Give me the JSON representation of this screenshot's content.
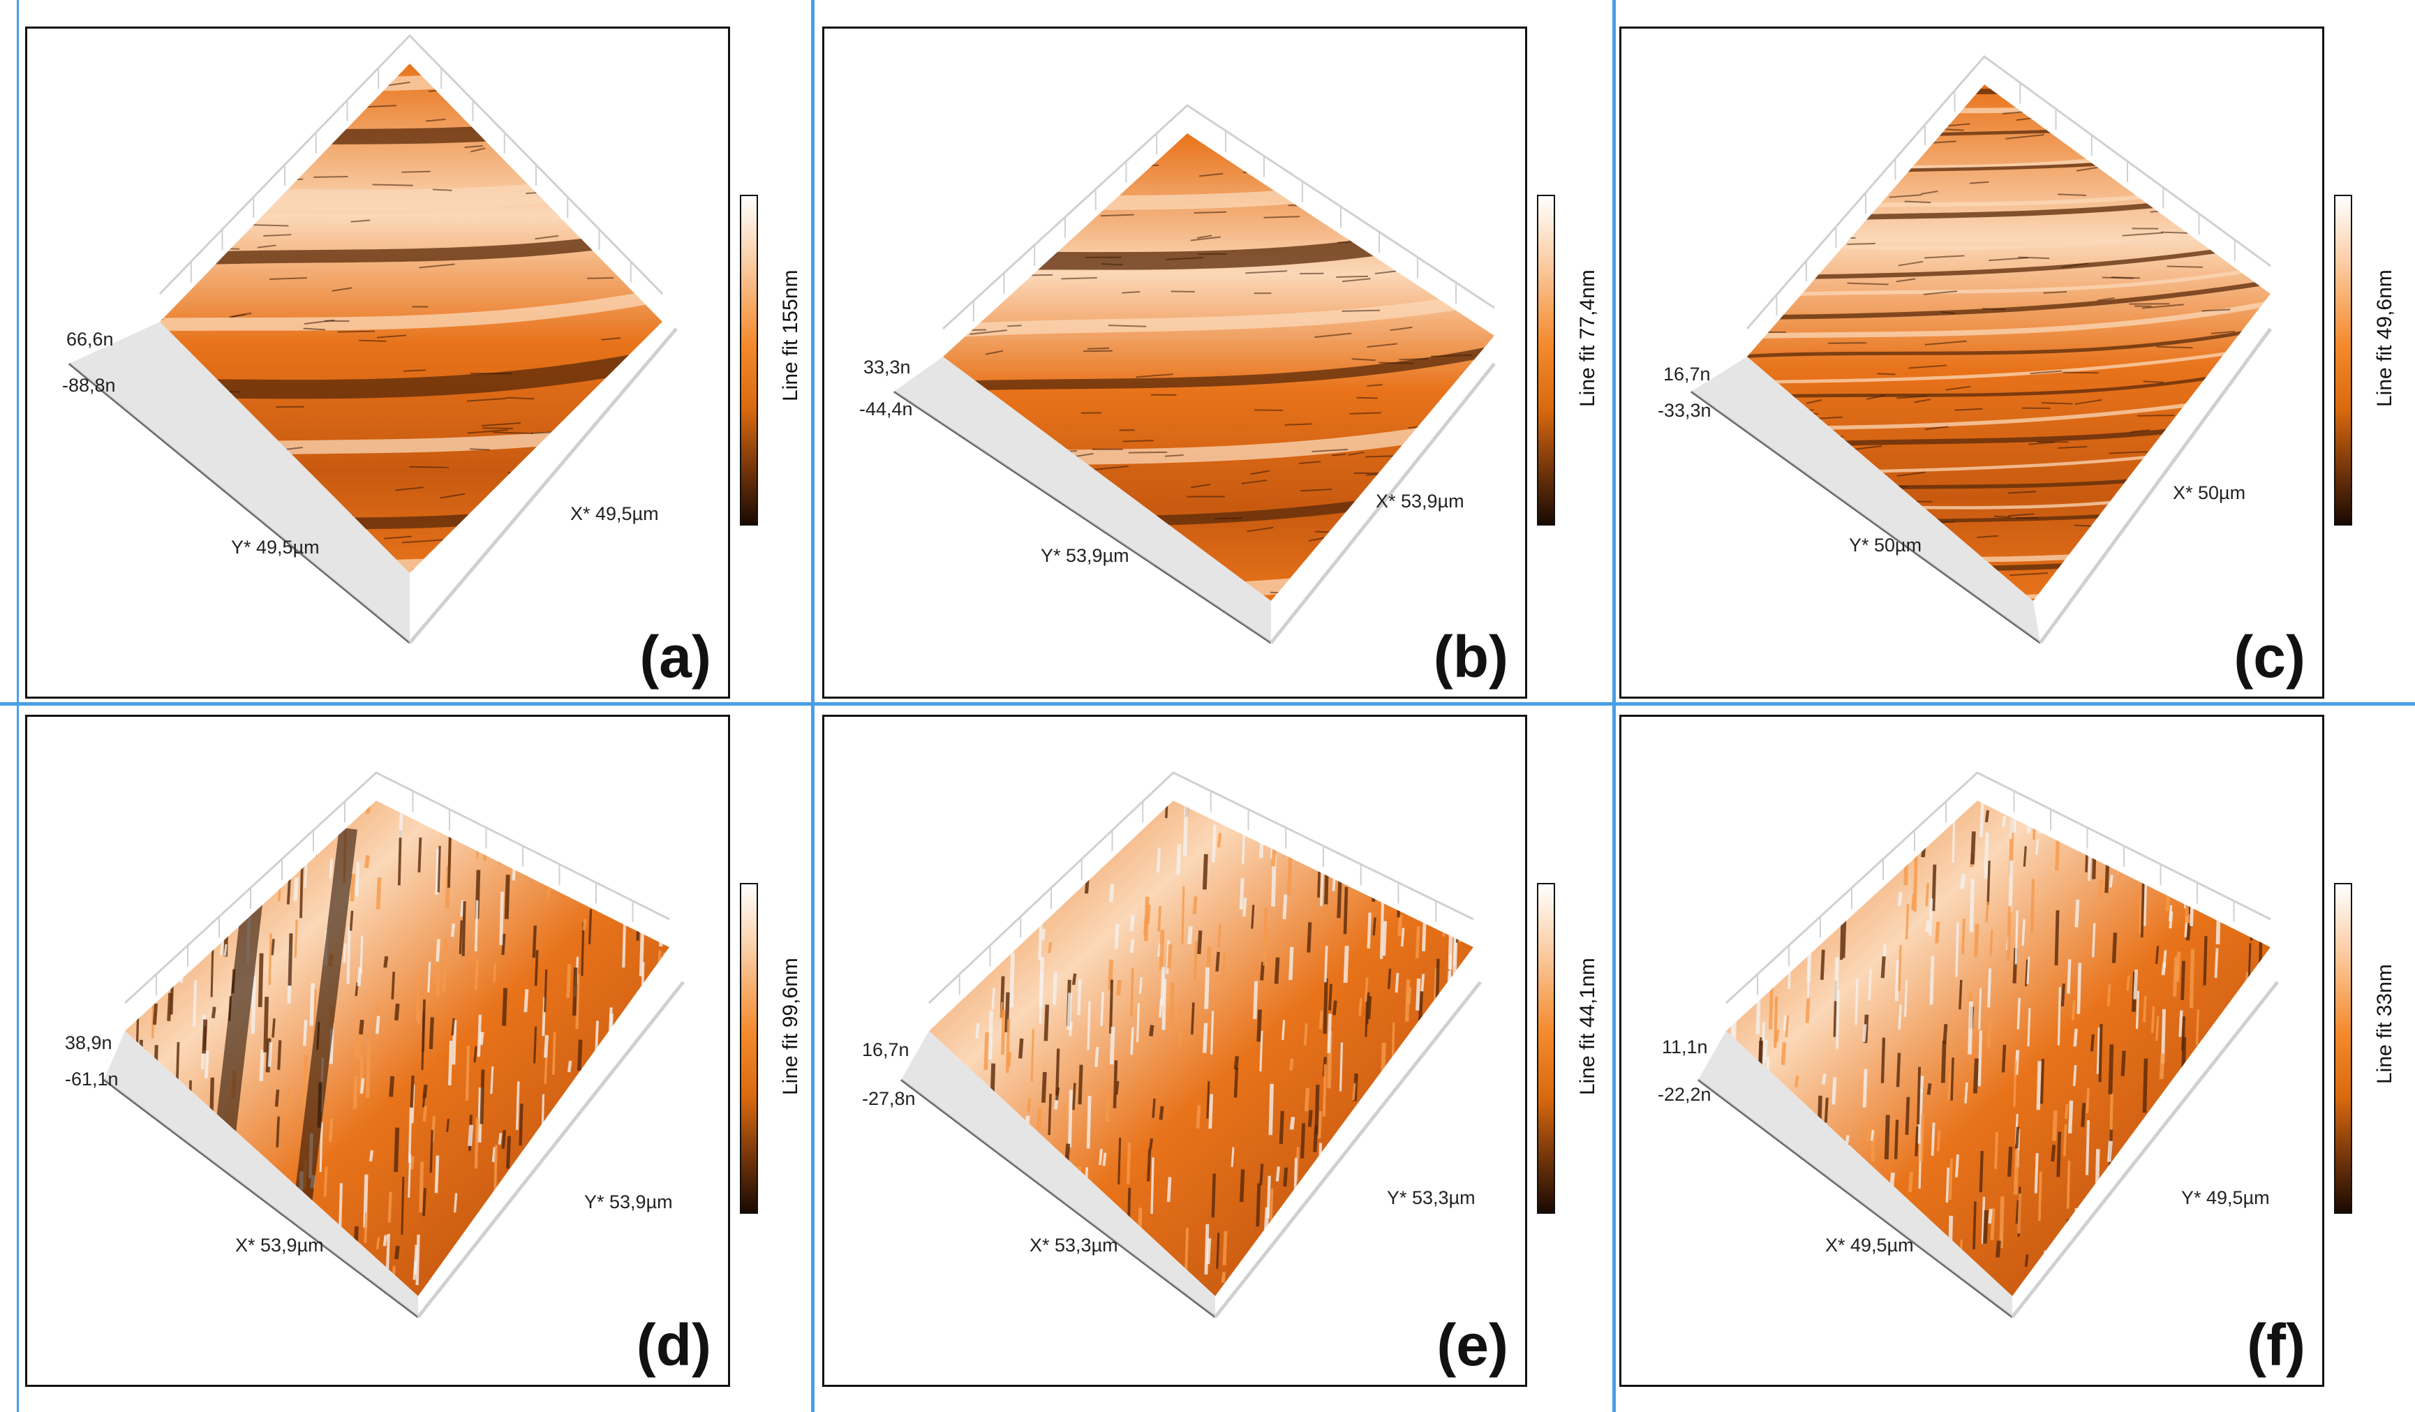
{
  "colors": {
    "frame_border": "#111111",
    "divider": "#4a9fe6",
    "surface_orange": "#e8731a",
    "surface_light": "#fbd8b8",
    "surface_dark": "#5a2a0a",
    "axes_box": "#d0d0d0"
  },
  "panels": [
    {
      "id": "a",
      "label": "(a)",
      "z_max": "66,6n",
      "z_min": "-88,8n",
      "left_axis": "Y* 49,5µm",
      "right_axis": "X* 49,5µm",
      "colorbar": "Line fit 155nm",
      "texture": "bands"
    },
    {
      "id": "b",
      "label": "(b)",
      "z_max": "33,3n",
      "z_min": "-44,4n",
      "left_axis": "Y* 53,9µm",
      "right_axis": "X* 53,9µm",
      "colorbar": "Line fit 77,4nm",
      "texture": "bands"
    },
    {
      "id": "c",
      "label": "(c)",
      "z_max": "16,7n",
      "z_min": "-33,3n",
      "left_axis": "Y* 50µm",
      "right_axis": "X* 50µm",
      "colorbar": "Line fit 49,6nm",
      "texture": "streaks"
    },
    {
      "id": "d",
      "label": "(d)",
      "z_max": "38,9n",
      "z_min": "-61,1n",
      "left_axis": "X* 53,9µm",
      "right_axis": "Y* 53,9µm",
      "colorbar": "Line fit 99,6nm",
      "texture": "spikes"
    },
    {
      "id": "e",
      "label": "(e)",
      "z_max": "16,7n",
      "z_min": "-27,8n",
      "left_axis": "X* 53,3µm",
      "right_axis": "Y* 53,3µm",
      "colorbar": "Line fit 44,1nm",
      "texture": "spikes"
    },
    {
      "id": "f",
      "label": "(f)",
      "z_max": "11,1n",
      "z_min": "-22,2n",
      "left_axis": "X* 49,5µm",
      "right_axis": "Y* 49,5µm",
      "colorbar": "Line fit 33nm",
      "texture": "spikes"
    }
  ]
}
